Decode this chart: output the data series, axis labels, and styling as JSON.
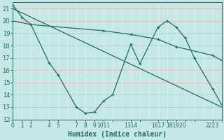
{
  "xlabel": "Humidex (Indice chaleur)",
  "bg_color": "#c5e8e5",
  "line_color": "#1e6b62",
  "hgrid_color": "#e8b4b4",
  "vgrid_color": "#d8f0ee",
  "ylim": [
    12,
    21.5
  ],
  "xlim": [
    0,
    23
  ],
  "yticks": [
    12,
    13,
    14,
    15,
    16,
    17,
    18,
    19,
    20,
    21
  ],
  "series1_x": [
    0,
    1,
    2,
    4,
    5,
    7,
    8,
    9,
    10,
    11,
    13,
    14,
    16,
    17,
    18,
    19,
    20,
    22,
    23
  ],
  "series1_y": [
    21.3,
    20.3,
    19.7,
    16.6,
    15.6,
    13.0,
    12.5,
    12.6,
    13.5,
    14.0,
    18.1,
    16.5,
    19.5,
    20.0,
    19.5,
    18.6,
    17.0,
    14.5,
    13.2
  ],
  "series2_x": [
    0,
    2,
    10,
    13,
    16,
    18,
    22,
    23
  ],
  "series2_y": [
    20.0,
    19.7,
    19.2,
    18.9,
    18.5,
    17.9,
    17.2,
    16.8
  ],
  "series3_x": [
    0,
    23
  ],
  "series3_y": [
    21.0,
    13.0
  ],
  "xtick_positions": [
    0,
    1,
    2,
    4,
    5,
    7,
    8,
    9,
    10,
    11,
    13,
    14,
    16,
    17,
    18,
    19,
    20,
    22,
    23
  ],
  "xtick_labels": [
    "0",
    "1",
    "2",
    "4",
    "5",
    "7",
    "8",
    "9",
    "1011",
    "",
    "1314",
    "",
    "1617",
    "",
    "181920",
    "",
    "",
    "2223",
    ""
  ]
}
